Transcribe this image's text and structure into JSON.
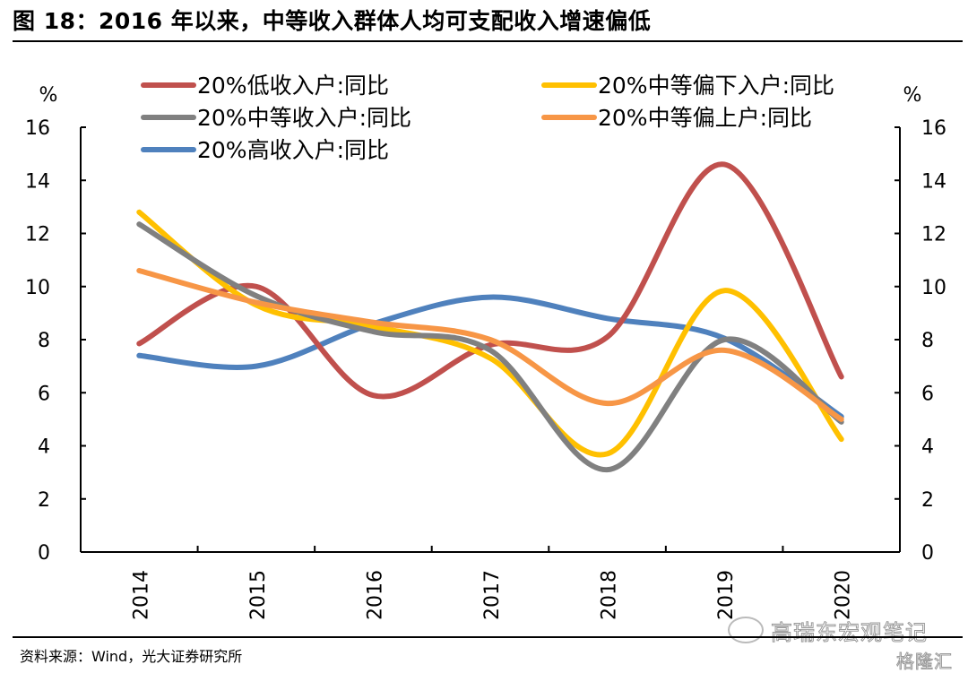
{
  "header": {
    "title": "图 18：2016 年以来，中等收入群体人均可支配收入增速偏低"
  },
  "footer": {
    "source": "资料来源：Wind，光大证券研究所",
    "watermark_main": "高瑞东宏观笔记",
    "watermark_brand": "格隆汇",
    "watermark_icon": "wechat-icon"
  },
  "chart_data": {
    "type": "line",
    "title": "图 18：2016 年以来，中等收入群体人均可支配收入增速偏低",
    "xlabel": "",
    "ylabel": "%",
    "ylabel_right": "%",
    "categories": [
      "2014",
      "2015",
      "2016",
      "2017",
      "2018",
      "2019",
      "2020"
    ],
    "ylim": [
      0,
      16
    ],
    "yticks": [
      "0",
      "2",
      "4",
      "6",
      "8",
      "10",
      "12",
      "14",
      "16"
    ],
    "grid": false,
    "smooth": true,
    "legend_position": "top",
    "series": [
      {
        "name": "20%低收入户:同比",
        "color": "#C0504D",
        "values": [
          7.85,
          10.0,
          5.9,
          7.8,
          8.1,
          14.6,
          6.6
        ]
      },
      {
        "name": "20%中等偏下入户:同比",
        "color": "#FFC000",
        "values": [
          12.8,
          9.3,
          8.5,
          7.3,
          3.7,
          9.85,
          4.25
        ]
      },
      {
        "name": "20%中等收入户:同比",
        "color": "#808080",
        "values": [
          12.35,
          9.65,
          8.3,
          7.6,
          3.1,
          8.0,
          4.9
        ]
      },
      {
        "name": "20%中等偏上户:同比",
        "color": "#F79646",
        "values": [
          10.6,
          9.4,
          8.65,
          8.0,
          5.6,
          7.6,
          5.0
        ]
      },
      {
        "name": "20%高收入户:同比",
        "color": "#4F81BD",
        "values": [
          7.4,
          7.0,
          8.6,
          9.6,
          8.8,
          8.05,
          5.1
        ]
      }
    ]
  }
}
